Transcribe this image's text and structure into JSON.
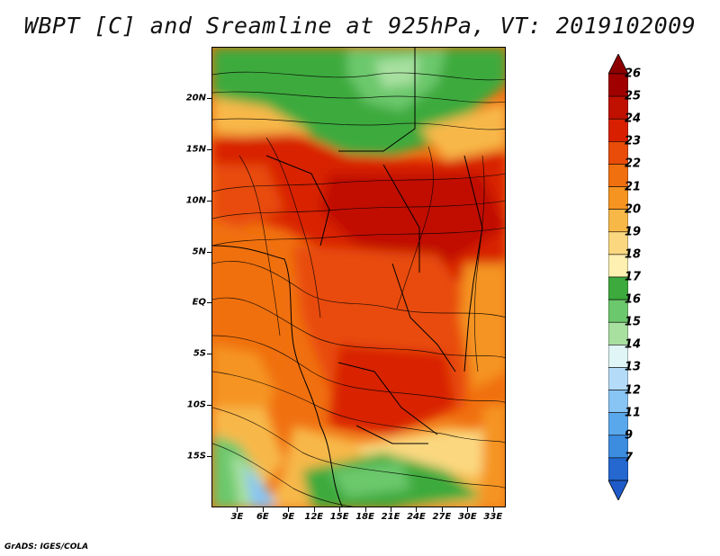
{
  "title": "WBPT [C] and Sreamline at 925hPa, VT: 2019102009",
  "credit": "GrADS: IGES/COLA",
  "map": {
    "lat_labels": [
      "20N",
      "15N",
      "10N",
      "5N",
      "EQ",
      "5S",
      "10S",
      "15S"
    ],
    "lat_values": [
      20,
      15,
      10,
      5,
      0,
      -5,
      -10,
      -15
    ],
    "lon_labels": [
      "3E",
      "6E",
      "9E",
      "12E",
      "15E",
      "18E",
      "21E",
      "24E",
      "27E",
      "30E",
      "33E"
    ],
    "lon_values": [
      3,
      6,
      9,
      12,
      15,
      18,
      21,
      24,
      27,
      30,
      33
    ],
    "lat_range": [
      -20,
      25
    ],
    "lon_range": [
      0,
      34.5
    ]
  },
  "colorbar": {
    "labels": [
      "26",
      "25",
      "24",
      "23",
      "22",
      "21",
      "20",
      "19",
      "18",
      "17",
      "16",
      "15",
      "14",
      "13",
      "12",
      "11",
      "9",
      "7"
    ],
    "colors": [
      "#a00000",
      "#c01000",
      "#d82000",
      "#e84c08",
      "#f07010",
      "#f59420",
      "#f8b848",
      "#fbd880",
      "#fdf0b0",
      "#3caa3c",
      "#6cc86c",
      "#a8e0a0",
      "#e0f5f5",
      "#b4dcf8",
      "#88c4f4",
      "#5aa8ec",
      "#3c8ce0",
      "#2468d0"
    ],
    "top_arrow_color": "#8c0000",
    "bottom_arrow_color": "#1e5ac8"
  }
}
